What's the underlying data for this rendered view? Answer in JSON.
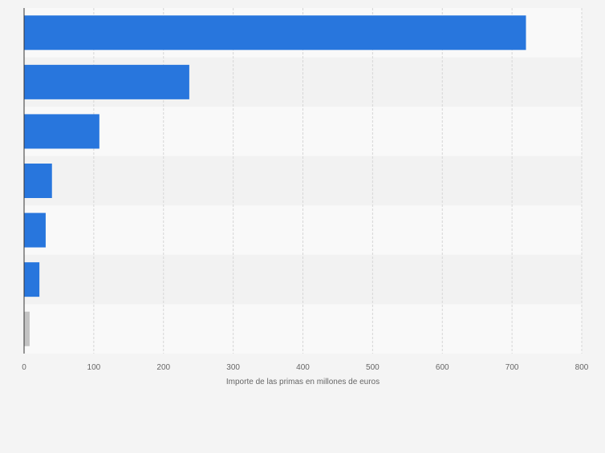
{
  "chart_data": {
    "type": "bar",
    "orientation": "horizontal",
    "categories": [
      "",
      "",
      "",
      "",
      "",
      "",
      ""
    ],
    "values": [
      720,
      237,
      108,
      40,
      31,
      22,
      8
    ],
    "bar_colors": [
      "#2876dd",
      "#2876dd",
      "#2876dd",
      "#2876dd",
      "#2876dd",
      "#2876dd",
      "#c3c3c3"
    ],
    "xlim": [
      0,
      800
    ],
    "xticks": [
      0,
      100,
      200,
      300,
      400,
      500,
      600,
      700,
      800
    ],
    "tick_labels": [
      "0",
      "100",
      "200",
      "300",
      "400",
      "500",
      "600",
      "700",
      "800"
    ],
    "xlabel": "Importe de las primas en millones de euros",
    "ylabel": "",
    "title": "",
    "grid": "vertical dashed",
    "legend": "none",
    "colors": {
      "page_background": "#f4f4f4",
      "band_light": "#f9f9f9",
      "band_dark": "#f2f2f2",
      "grid": "#d6d6d6",
      "axis": "#333333",
      "tick_text": "#666666"
    }
  }
}
